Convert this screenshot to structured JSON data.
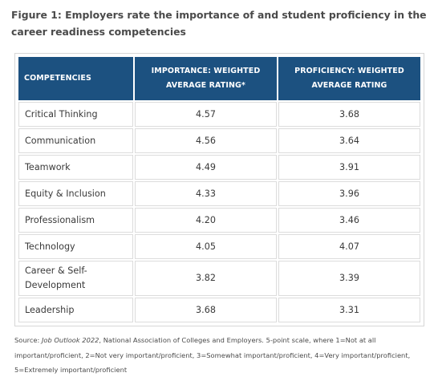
{
  "figure": {
    "title": "Figure 1: Employers rate the importance of and student proficiency in the career readiness competencies"
  },
  "table": {
    "headers": [
      "COMPETENCIES",
      "IMPORTANCE: WEIGHTED AVERAGE RATING*",
      "PROFICIENCY: WEIGHTED AVERAGE RATING"
    ],
    "rows": [
      {
        "competency": "Critical Thinking",
        "importance": "4.57",
        "proficiency": "3.68"
      },
      {
        "competency": "Communication",
        "importance": "4.56",
        "proficiency": "3.64"
      },
      {
        "competency": "Teamwork",
        "importance": "4.49",
        "proficiency": "3.91"
      },
      {
        "competency": "Equity & Inclusion",
        "importance": "4.33",
        "proficiency": "3.96"
      },
      {
        "competency": "Professionalism",
        "importance": "4.20",
        "proficiency": "3.46"
      },
      {
        "competency": "Technology",
        "importance": "4.05",
        "proficiency": "4.07"
      },
      {
        "competency": "Career & Self-Development",
        "importance": "3.82",
        "proficiency": "3.39"
      },
      {
        "competency": "Leadership",
        "importance": "3.68",
        "proficiency": "3.31"
      }
    ]
  },
  "source": {
    "prefix": "Source: ",
    "publication": "Job Outlook 2022",
    "text": ", National Association of Colleges and Employers. 5-point scale, where 1=Not at all important/proficient, 2=Not very important/proficient, 3=Somewhat important/proficient, 4=Very important/proficient, 5=Extremely important/proficient"
  }
}
